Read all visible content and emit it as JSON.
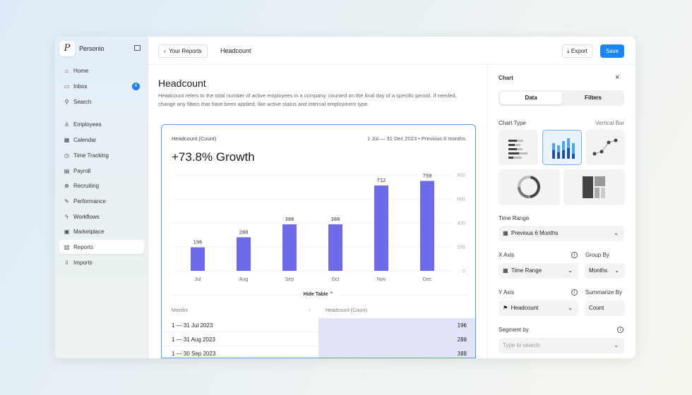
{
  "sidebar": {
    "brand": "Personio",
    "items": [
      {
        "label": "Home",
        "icon": "⌂"
      },
      {
        "label": "Inbox",
        "icon": "▭",
        "badge": "6"
      },
      {
        "label": "Search",
        "icon": "⚲"
      },
      {
        "label": "Employees",
        "icon": "♙"
      },
      {
        "label": "Calendar",
        "icon": "▦"
      },
      {
        "label": "Time Tracking",
        "icon": "◷"
      },
      {
        "label": "Payroll",
        "icon": "▤"
      },
      {
        "label": "Recruiting",
        "icon": "⊕"
      },
      {
        "label": "Performance",
        "icon": "✎"
      },
      {
        "label": "Workflows",
        "icon": "ϟ"
      },
      {
        "label": "Marketplace",
        "icon": "▣"
      },
      {
        "label": "Reports",
        "icon": "▥"
      },
      {
        "label": "Imports",
        "icon": "⇩"
      }
    ]
  },
  "header": {
    "back": "Your Reports",
    "title": "Headcount",
    "export": "Export",
    "save": "Save"
  },
  "main": {
    "title": "Headcount",
    "description": "Headcount refers to the total number of active employees in a company, counted on the final day of a specific period. If needed, change any filters that have been applied, like active status and internal employment type.",
    "card_label": "Headcount (Count)",
    "range": "1 Jul — 31 Dec 2023 • Previous 6 months",
    "growth": "+73.8% Growth",
    "hide_table": "Hide Table ⌃",
    "table": {
      "col1": "Months",
      "col2": "Headcount (Count)",
      "rows": [
        {
          "m": "1 — 31 Jul 2023",
          "v": "196"
        },
        {
          "m": "1 — 31 Aug 2023",
          "v": "280"
        },
        {
          "m": "1 — 30 Sep 2023",
          "v": "388"
        }
      ]
    }
  },
  "chart_data": {
    "type": "bar",
    "categories": [
      "Jul",
      "Aug",
      "Sep",
      "Oct",
      "Nov",
      "Dec"
    ],
    "values": [
      196,
      280,
      388,
      388,
      712,
      750
    ],
    "ylim": [
      0,
      800
    ],
    "yticks": [
      0,
      200,
      400,
      600,
      800
    ],
    "color": "#6e6bea",
    "title": "Headcount (Count)"
  },
  "panel": {
    "title": "Chart",
    "close": "×",
    "tab_data": "Data",
    "tab_filters": "Filters",
    "chart_type": "Chart Type",
    "chart_type_value": "Vertical Bar",
    "time_range": "Time Range",
    "time_range_value": "Previous 6 Months",
    "x_axis": "X Axis",
    "x_axis_value": "Time Range",
    "group_by": "Group By",
    "group_by_value": "Months",
    "y_axis": "Y Axis",
    "y_axis_value": "Headcount",
    "summarize_by": "Summarize By",
    "summarize_value": "Count",
    "segment_by": "Segment by",
    "segment_placeholder": "Type to search"
  }
}
